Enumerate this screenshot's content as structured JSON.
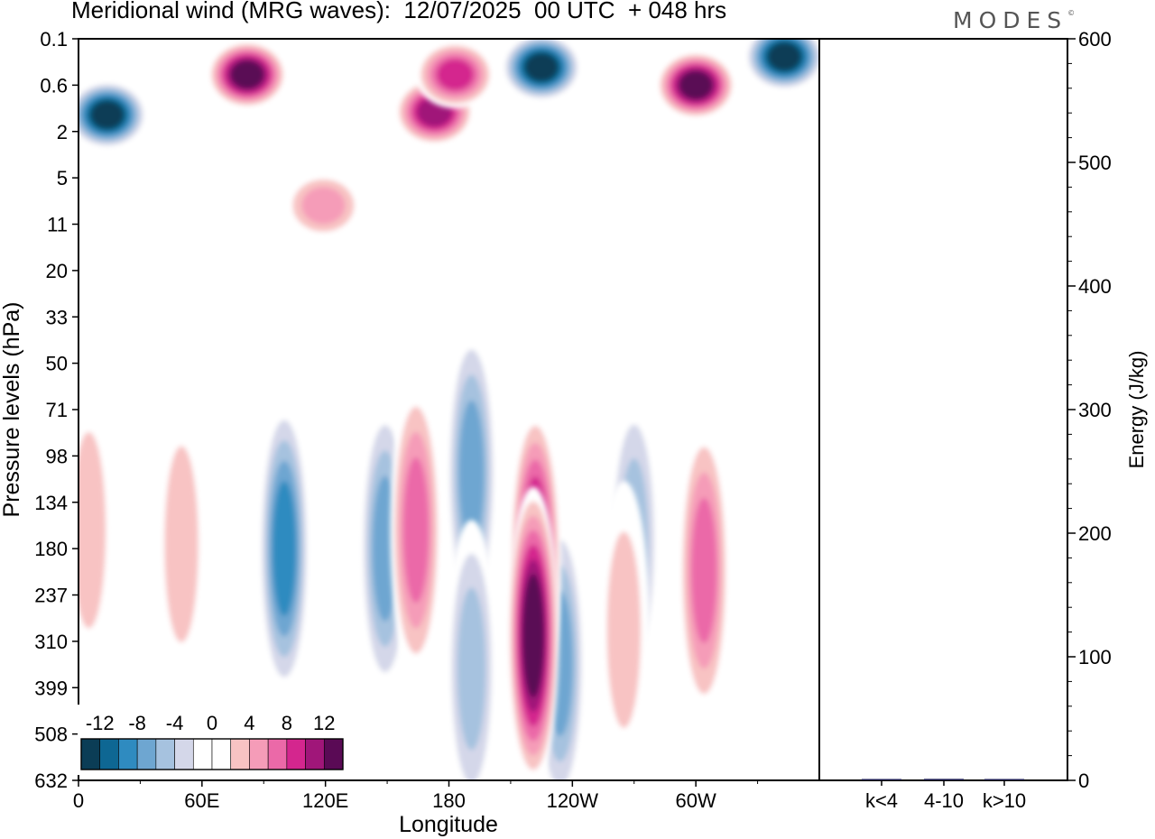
{
  "header": {
    "title": "Meridional wind (MRG waves):  12/07/2025  00 UTC  + 048 hrs",
    "brand": "MODES",
    "brand_mark": "©"
  },
  "chart_data": [
    {
      "type": "heatmap",
      "xlabel": "Longitude",
      "ylabel": "Pressure levels (hPa)",
      "x_ticks": [
        "0",
        "60E",
        "120E",
        "180",
        "120W",
        "60W"
      ],
      "x_tick_values": [
        0,
        60,
        120,
        180,
        240,
        300
      ],
      "xlim": [
        0,
        360
      ],
      "y_ticks": [
        "0.1",
        "0.6",
        "2",
        "5",
        "11",
        "20",
        "33",
        "50",
        "71",
        "98",
        "134",
        "180",
        "237",
        "310",
        "399",
        "508",
        "632"
      ],
      "y_scale": "pressure levels, top to bottom",
      "colorbar": {
        "labels": [
          "-12",
          "-8",
          "-4",
          "0",
          "4",
          "8",
          "12"
        ],
        "levels": [
          -14,
          -12,
          -10,
          -8,
          -6,
          -4,
          -2,
          0,
          2,
          4,
          6,
          8,
          10,
          12,
          14
        ],
        "colors": [
          "#0b3d56",
          "#0e6793",
          "#2f8bc0",
          "#6ea6d1",
          "#a6c2df",
          "#d4d7e9",
          "#ffffff",
          "#ffffff",
          "#f8c3c3",
          "#f59cb8",
          "#eb69a8",
          "#d4268e",
          "#a01679",
          "#5a0a55"
        ]
      },
      "features": [
        {
          "lon": 100,
          "level": 180,
          "value": -10
        },
        {
          "lon": 149,
          "level": 180,
          "value": -8
        },
        {
          "lon": 191,
          "level": 110,
          "value": -8
        },
        {
          "lon": 191,
          "level": 360,
          "value": -6
        },
        {
          "lon": 270,
          "level": 170,
          "value": -6
        },
        {
          "lon": 234,
          "level": 350,
          "value": -8
        },
        {
          "lon": 164,
          "level": 160,
          "value": 8
        },
        {
          "lon": 222,
          "level": 190,
          "value": 12
        },
        {
          "lon": 221,
          "level": 300,
          "value": 14
        },
        {
          "lon": 304,
          "level": 205,
          "value": 8
        },
        {
          "lon": 265,
          "level": 290,
          "value": 4
        },
        {
          "lon": 5,
          "level": 160,
          "value": 4
        },
        {
          "lon": 50,
          "level": 175,
          "value": 4
        },
        {
          "lon": 14,
          "level": 1.3,
          "value": -14
        },
        {
          "lon": 82,
          "level": 0.4,
          "value": 14
        },
        {
          "lon": 300,
          "level": 0.6,
          "value": 14
        },
        {
          "lon": 343,
          "level": 0.2,
          "value": -14
        },
        {
          "lon": 225,
          "level": 0.3,
          "value": -14
        },
        {
          "lon": 173,
          "level": 1.2,
          "value": 12
        },
        {
          "lon": 183,
          "level": 0.4,
          "value": 10
        },
        {
          "lon": 119,
          "level": 8,
          "value": 6
        }
      ]
    },
    {
      "type": "bar",
      "categories": [
        "k<4",
        "4-10",
        "k>10"
      ],
      "values": [
        0.4,
        1.2,
        0.2
      ],
      "ylabel": "Energy (J/kg)",
      "ylim": [
        0,
        600
      ],
      "y_ticks": [
        "0",
        "100",
        "200",
        "300",
        "400",
        "500",
        "600"
      ],
      "bar_color": "#1a1a50"
    }
  ]
}
